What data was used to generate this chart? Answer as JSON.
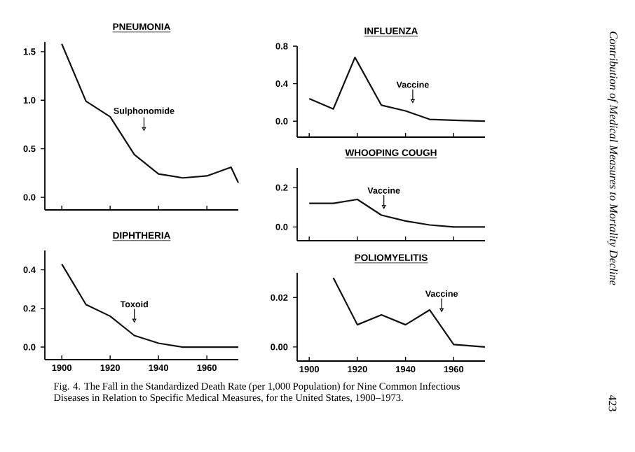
{
  "chart_data": [
    {
      "type": "line",
      "title": "PNEUMONIA",
      "color": "#111111",
      "x": [
        1900,
        1910,
        1920,
        1930,
        1940,
        1950,
        1960,
        1970,
        1973
      ],
      "values": [
        1.58,
        0.99,
        0.83,
        0.44,
        0.24,
        0.2,
        0.22,
        0.31,
        0.15
      ],
      "xlim": [
        1893,
        1973
      ],
      "ylim": [
        -0.13,
        1.6
      ],
      "xticks": [
        1900,
        1920,
        1940,
        1960
      ],
      "yticks": [
        {
          "value": 0,
          "label": "0.0"
        },
        {
          "value": 0.5,
          "label": "0.5"
        },
        {
          "value": 1,
          "label": "1.0"
        },
        {
          "value": 1.5,
          "label": "1.5"
        }
      ],
      "tick_labels": "y",
      "annotations": [
        {
          "text": "Sulphonomide",
          "x": 1934,
          "y": 0.68
        }
      ]
    },
    {
      "type": "line",
      "title": "INFLUENZA",
      "color": "#111111",
      "x": [
        1900,
        1910,
        1919,
        1930,
        1940,
        1950,
        1960,
        1973
      ],
      "values": [
        0.24,
        0.13,
        0.68,
        0.17,
        0.11,
        0.02,
        0.01,
        0.0
      ],
      "xlim": [
        1895,
        1973
      ],
      "ylim": [
        -0.17,
        0.8
      ],
      "xticks": [
        1900,
        1920,
        1940,
        1960
      ],
      "yticks": [
        {
          "value": 0,
          "label": "0.0"
        },
        {
          "value": 0.4,
          "label": "0.4"
        },
        {
          "value": 0.8,
          "label": "0.8"
        }
      ],
      "tick_labels": "y",
      "annotations": [
        {
          "text": "Vaccine",
          "x": 1943,
          "y": 0.19
        }
      ]
    },
    {
      "type": "line",
      "title": "WHOOPING COUGH",
      "color": "#111111",
      "x": [
        1900,
        1910,
        1920,
        1930,
        1940,
        1950,
        1960,
        1973
      ],
      "values": [
        0.12,
        0.12,
        0.14,
        0.06,
        0.03,
        0.01,
        0.0,
        0.0
      ],
      "xlim": [
        1895,
        1973
      ],
      "ylim": [
        -0.07,
        0.3
      ],
      "xticks": [
        1900,
        1920,
        1940,
        1960
      ],
      "yticks": [
        {
          "value": 0,
          "label": "0.0"
        },
        {
          "value": 0.2,
          "label": "0.2"
        }
      ],
      "tick_labels": "y",
      "annotations": [
        {
          "text": "Vaccine",
          "x": 1931,
          "y": 0.09
        }
      ]
    },
    {
      "type": "line",
      "title": "DIPHTHERIA",
      "color": "#111111",
      "x": [
        1900,
        1910,
        1920,
        1930,
        1940,
        1950,
        1960,
        1973
      ],
      "values": [
        0.43,
        0.22,
        0.16,
        0.06,
        0.02,
        0.0,
        0.0,
        0.0
      ],
      "xlim": [
        1893,
        1973
      ],
      "ylim": [
        -0.065,
        0.5
      ],
      "xticks": [
        1900,
        1920,
        1940,
        1960
      ],
      "yticks": [
        {
          "value": 0,
          "label": "0.0"
        },
        {
          "value": 0.2,
          "label": "0.2"
        },
        {
          "value": 0.4,
          "label": "0.4"
        }
      ],
      "annotations": [
        {
          "text": "Toxoid",
          "x": 1930,
          "y": 0.125
        }
      ]
    },
    {
      "type": "line",
      "title": "POLIOMYELITIS",
      "color": "#111111",
      "x": [
        1910,
        1920,
        1930,
        1940,
        1950,
        1960,
        1973
      ],
      "values": [
        0.028,
        0.009,
        0.013,
        0.009,
        0.015,
        0.001,
        0.0
      ],
      "xlim": [
        1895,
        1973
      ],
      "ylim": [
        -0.0057,
        0.03
      ],
      "xticks": [
        1900,
        1920,
        1940,
        1960
      ],
      "yticks": [
        {
          "value": 0,
          "label": "0.00"
        },
        {
          "value": 0.02,
          "label": "0.02"
        }
      ],
      "annotations": [
        {
          "text": "Vaccine",
          "x": 1955,
          "y": 0.014
        }
      ]
    },
    {
      "type": "other",
      "annotations": [
        "Fig. 4. The Fall in the Standardized Death Rate (per 1,000 Population) for Nine Common Infectious Diseases in Relation to Specific Medical Measures, for the United States, 1900–1973.",
        "Contribution of Medical Measures to Mortality Decline",
        "423"
      ]
    }
  ]
}
